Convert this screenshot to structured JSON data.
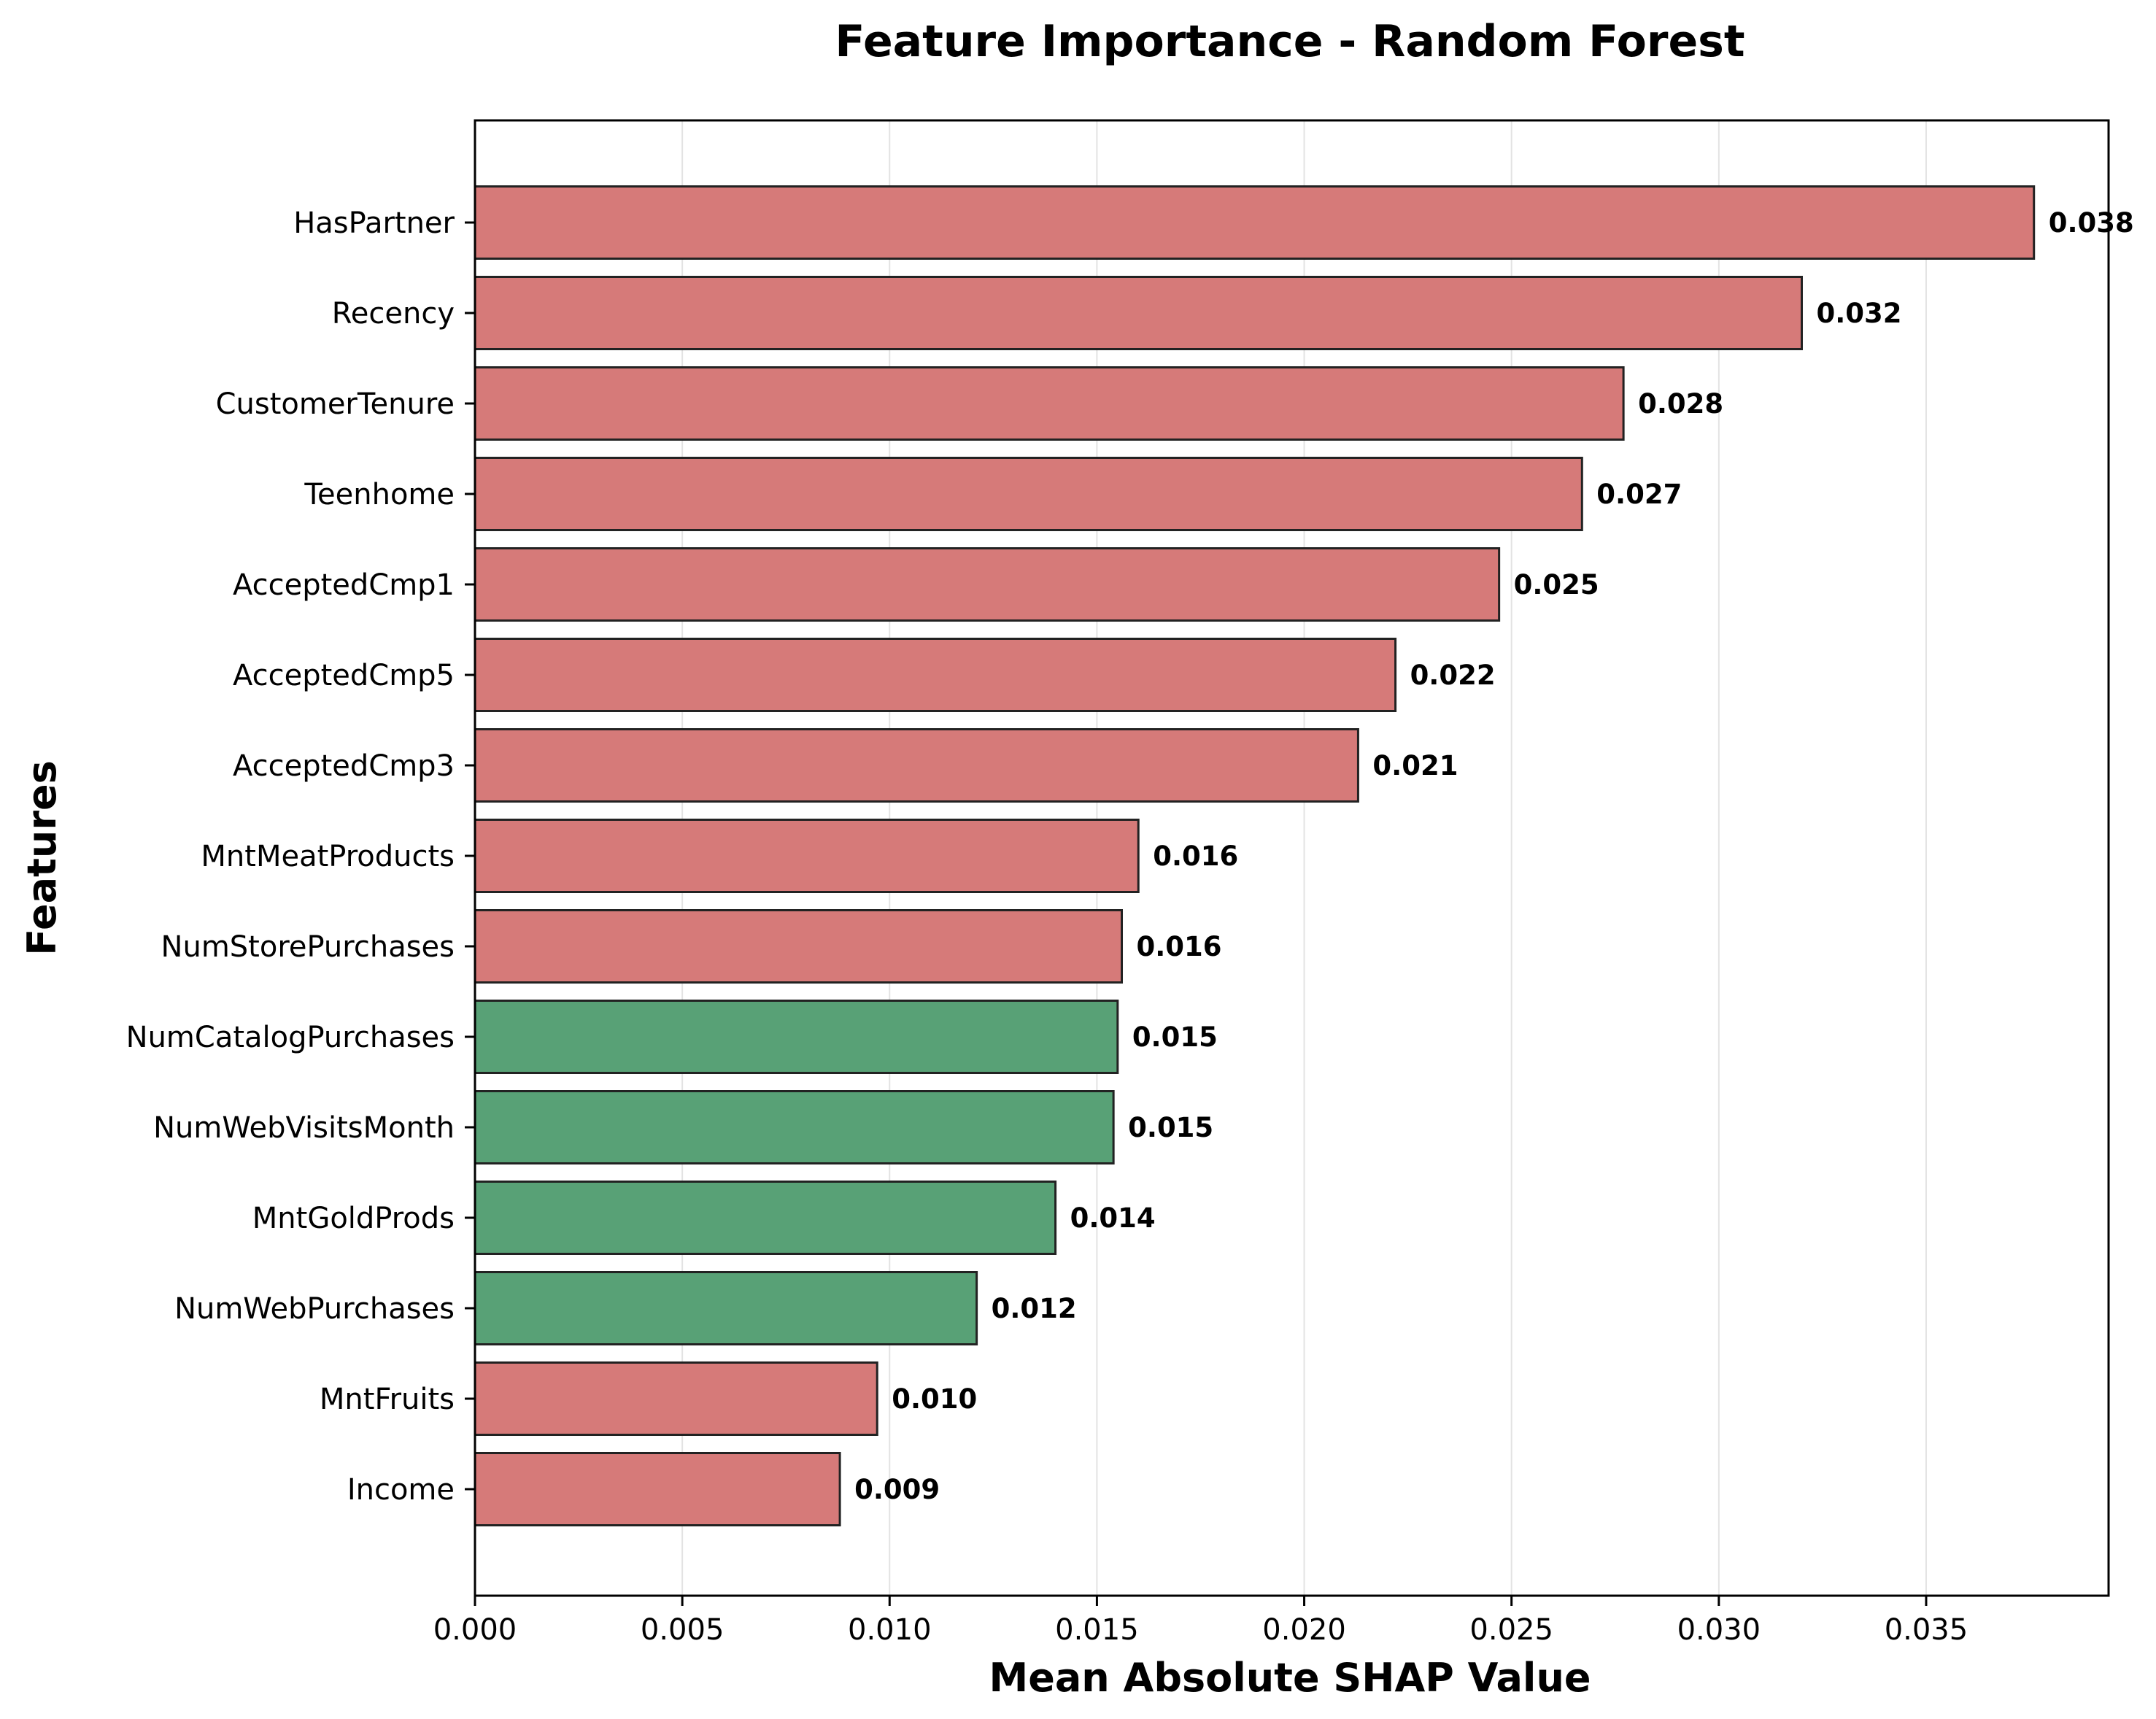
{
  "chart_data": {
    "type": "bar",
    "orientation": "horizontal",
    "title": "Feature Importance - Random Forest",
    "xlabel": "Mean Absolute SHAP Value",
    "ylabel": "Features",
    "xlim": [
      0,
      0.0394
    ],
    "xticks": [
      "0.000",
      "0.005",
      "0.010",
      "0.015",
      "0.020",
      "0.025",
      "0.030",
      "0.035"
    ],
    "grid": "x-only",
    "colors": {
      "red": "#d67a79",
      "green": "#58a176",
      "edge": "#222222",
      "grid": "#e3e3e3"
    },
    "bars": [
      {
        "category": "HasPartner",
        "value": 0.0376,
        "label": "0.038",
        "color": "red"
      },
      {
        "category": "Recency",
        "value": 0.032,
        "label": "0.032",
        "color": "red"
      },
      {
        "category": "CustomerTenure",
        "value": 0.0277,
        "label": "0.028",
        "color": "red"
      },
      {
        "category": "Teenhome",
        "value": 0.0267,
        "label": "0.027",
        "color": "red"
      },
      {
        "category": "AcceptedCmp1",
        "value": 0.0247,
        "label": "0.025",
        "color": "red"
      },
      {
        "category": "AcceptedCmp5",
        "value": 0.0222,
        "label": "0.022",
        "color": "red"
      },
      {
        "category": "AcceptedCmp3",
        "value": 0.0213,
        "label": "0.021",
        "color": "red"
      },
      {
        "category": "MntMeatProducts",
        "value": 0.016,
        "label": "0.016",
        "color": "red"
      },
      {
        "category": "NumStorePurchases",
        "value": 0.0156,
        "label": "0.016",
        "color": "red"
      },
      {
        "category": "NumCatalogPurchases",
        "value": 0.0155,
        "label": "0.015",
        "color": "green"
      },
      {
        "category": "NumWebVisitsMonth",
        "value": 0.0154,
        "label": "0.015",
        "color": "green"
      },
      {
        "category": "MntGoldProds",
        "value": 0.014,
        "label": "0.014",
        "color": "green"
      },
      {
        "category": "NumWebPurchases",
        "value": 0.0121,
        "label": "0.012",
        "color": "green"
      },
      {
        "category": "MntFruits",
        "value": 0.0097,
        "label": "0.010",
        "color": "red"
      },
      {
        "category": "Income",
        "value": 0.0088,
        "label": "0.009",
        "color": "red"
      }
    ]
  }
}
